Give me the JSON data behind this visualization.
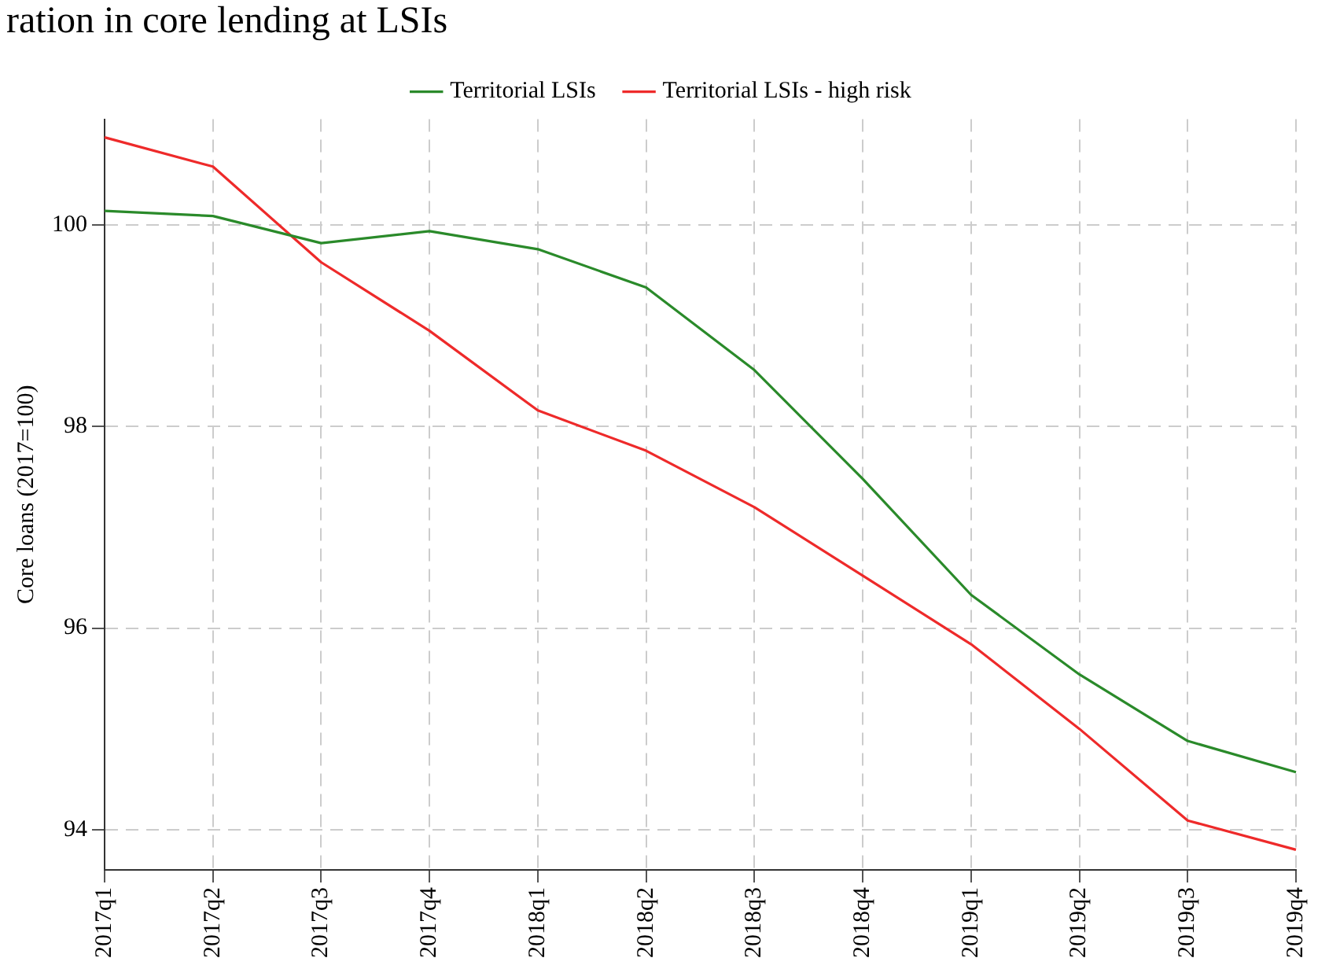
{
  "chart_data": {
    "type": "line",
    "title": "ration in core lending at LSIs",
    "ylabel": "Core loans (2017=100)",
    "categories": [
      "2017q1",
      "2017q2",
      "2017q3",
      "2017q4",
      "2018q1",
      "2018q2",
      "2018q3",
      "2018q4",
      "2019q1",
      "2019q2",
      "2019q3",
      "2019q4"
    ],
    "series": [
      {
        "name": "Territorial LSIs",
        "color": "#2a8a2a",
        "values": [
          100.14,
          100.09,
          99.82,
          99.94,
          99.76,
          99.38,
          98.56,
          97.48,
          96.33,
          95.54,
          94.88,
          94.57
        ]
      },
      {
        "name": "Territorial LSIs - high risk",
        "color": "#ee2a2a",
        "values": [
          100.87,
          100.58,
          99.63,
          98.95,
          98.16,
          97.76,
          97.2,
          96.52,
          95.84,
          95.0,
          94.09,
          93.8
        ]
      }
    ],
    "ylim": [
      93.6,
      101.05
    ],
    "yticks": [
      94,
      96,
      98,
      100
    ],
    "grid": true,
    "legend": "top",
    "marker": "none",
    "line_style": "solid"
  }
}
